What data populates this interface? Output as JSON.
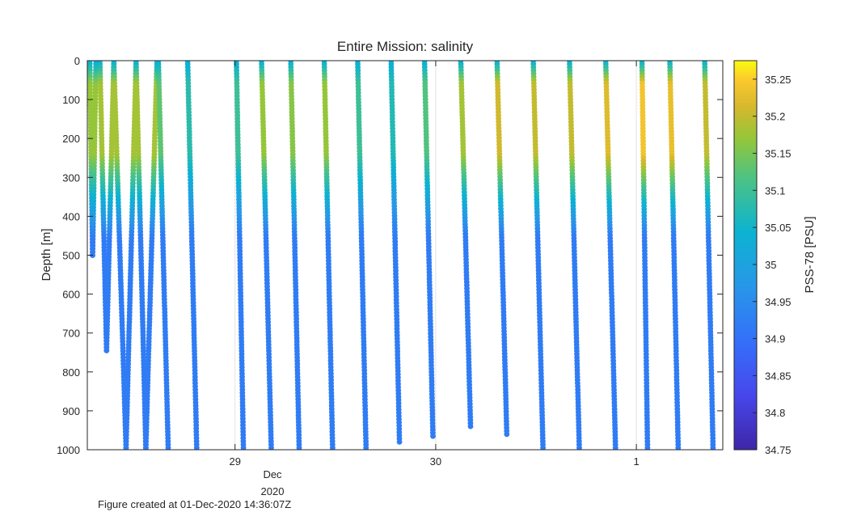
{
  "chart_data": {
    "type": "scatter",
    "title": "Entire Mission: salinity",
    "ylabel": "Depth [m]",
    "xlabel": "",
    "ylim": [
      1000,
      0
    ],
    "y_reversed": true,
    "yticks": [
      0,
      100,
      200,
      300,
      400,
      500,
      600,
      700,
      800,
      900,
      1000
    ],
    "xlim": [
      "2020-11-28T06:20Z",
      "2020-12-01T10:20Z"
    ],
    "xticks": [
      {
        "value": "2020-11-29",
        "label": "29"
      },
      {
        "value": "2020-11-30",
        "label": "30"
      },
      {
        "value": "2020-12-01",
        "label": "1"
      }
    ],
    "x_secondary_label": {
      "month": "Dec",
      "year": "2020"
    },
    "grid": "x-only",
    "colorbar": {
      "label": "PSS-78 [PSU]",
      "colormap": "parula",
      "range": [
        34.75,
        35.275
      ],
      "ticks": [
        34.75,
        34.8,
        34.85,
        34.9,
        34.95,
        35,
        35.05,
        35.1,
        35.15,
        35.2,
        35.25
      ]
    },
    "profiles": [
      {
        "dive": 1,
        "descent_start": "2020-11-28T06:38Z",
        "bottom_time": "2020-11-28T06:58Z",
        "max_depth_m": 500,
        "ascent_end": "2020-11-28T07:22Z",
        "upper_salinity": 35.17
      },
      {
        "dive": 2,
        "descent_start": "2020-11-28T07:50Z",
        "bottom_time": "2020-11-28T08:38Z",
        "max_depth_m": 745,
        "ascent_end": "2020-11-28T09:30Z",
        "upper_salinity": 35.18
      },
      {
        "dive": 3,
        "descent_start": "2020-11-28T09:30Z",
        "bottom_time": "2020-11-28T10:58Z",
        "max_depth_m": 995,
        "ascent_end": "2020-11-28T12:10Z",
        "upper_salinity": 35.18
      },
      {
        "dive": 4,
        "descent_start": "2020-11-28T12:10Z",
        "bottom_time": "2020-11-28T13:20Z",
        "max_depth_m": 995,
        "ascent_end": "2020-11-28T14:40Z",
        "upper_salinity": 35.18
      },
      {
        "dive": 5,
        "descent_start": "2020-11-28T14:50Z",
        "bottom_time": "2020-11-28T16:00Z",
        "max_depth_m": 995,
        "ascent_end": null,
        "upper_salinity": 35.13
      },
      {
        "dive": 6,
        "descent_start": "2020-11-28T18:20Z",
        "bottom_time": "2020-11-28T19:25Z",
        "max_depth_m": 995,
        "ascent_end": null,
        "upper_salinity": 35.08
      },
      {
        "dive": 7,
        "descent_start": "2020-11-29T00:10Z",
        "bottom_time": "2020-11-29T01:00Z",
        "max_depth_m": 995,
        "ascent_end": null,
        "upper_salinity": 35.1
      },
      {
        "dive": 8,
        "descent_start": "2020-11-29T03:10Z",
        "bottom_time": "2020-11-29T04:20Z",
        "max_depth_m": 995,
        "ascent_end": null,
        "upper_salinity": 35.17
      },
      {
        "dive": 9,
        "descent_start": "2020-11-29T06:40Z",
        "bottom_time": "2020-11-29T07:40Z",
        "max_depth_m": 995,
        "ascent_end": null,
        "upper_salinity": 35.16
      },
      {
        "dive": 10,
        "descent_start": "2020-11-29T10:40Z",
        "bottom_time": "2020-11-29T11:40Z",
        "max_depth_m": 995,
        "ascent_end": null,
        "upper_salinity": 35.17
      },
      {
        "dive": 11,
        "descent_start": "2020-11-29T14:40Z",
        "bottom_time": "2020-11-29T15:40Z",
        "max_depth_m": 995,
        "ascent_end": null,
        "upper_salinity": 35.1
      },
      {
        "dive": 12,
        "descent_start": "2020-11-29T18:40Z",
        "bottom_time": "2020-11-29T19:40Z",
        "max_depth_m": 980,
        "ascent_end": null,
        "upper_salinity": 35.07
      },
      {
        "dive": 13,
        "descent_start": "2020-11-29T22:40Z",
        "bottom_time": "2020-11-29T23:40Z",
        "max_depth_m": 965,
        "ascent_end": null,
        "upper_salinity": 35.12
      },
      {
        "dive": 14,
        "descent_start": "2020-11-30T03:00Z",
        "bottom_time": "2020-11-30T04:10Z",
        "max_depth_m": 940,
        "ascent_end": null,
        "upper_salinity": 35.18
      },
      {
        "dive": 15,
        "descent_start": "2020-11-30T07:20Z",
        "bottom_time": "2020-11-30T08:30Z",
        "max_depth_m": 960,
        "ascent_end": null,
        "upper_salinity": 35.21
      },
      {
        "dive": 16,
        "descent_start": "2020-11-30T11:40Z",
        "bottom_time": "2020-11-30T12:50Z",
        "max_depth_m": 995,
        "ascent_end": null,
        "upper_salinity": 35.2
      },
      {
        "dive": 17,
        "descent_start": "2020-11-30T16:00Z",
        "bottom_time": "2020-11-30T17:10Z",
        "max_depth_m": 995,
        "ascent_end": null,
        "upper_salinity": 35.2
      },
      {
        "dive": 18,
        "descent_start": "2020-11-30T20:20Z",
        "bottom_time": "2020-11-30T21:30Z",
        "max_depth_m": 995,
        "ascent_end": null,
        "upper_salinity": 35.22
      },
      {
        "dive": 19,
        "descent_start": "2020-12-01T00:40Z",
        "bottom_time": "2020-12-01T01:20Z",
        "max_depth_m": 995,
        "ascent_end": null,
        "upper_salinity": 35.24
      },
      {
        "dive": 20,
        "descent_start": "2020-12-01T04:00Z",
        "bottom_time": "2020-12-01T05:00Z",
        "max_depth_m": 995,
        "ascent_end": null,
        "upper_salinity": 35.23
      },
      {
        "dive": 21,
        "descent_start": "2020-12-01T08:10Z",
        "bottom_time": "2020-12-01T09:10Z",
        "max_depth_m": 995,
        "ascent_end": null,
        "upper_salinity": 35.2
      }
    ]
  },
  "footer": {
    "created": "Figure created at 01-Dec-2020 14:36:07Z"
  }
}
